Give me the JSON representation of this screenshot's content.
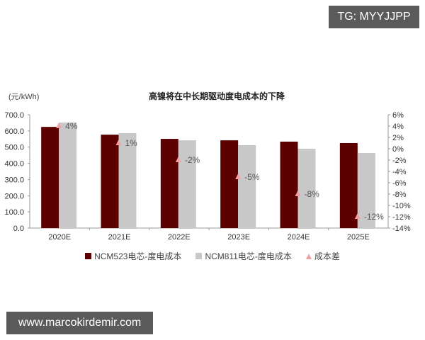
{
  "watermark_top": "TG: MYYJJPP",
  "watermark_bottom": "www.marcokirdemir.com",
  "chart_data": {
    "type": "bar",
    "title": "高镍将在中长期驱动度电成本的下降",
    "ylabel": "(元/kWh)",
    "xlabel": "",
    "categories": [
      "2020E",
      "2021E",
      "2022E",
      "2023E",
      "2024E",
      "2025E"
    ],
    "series": [
      {
        "name": "NCM523电芯-度电成本",
        "type": "bar",
        "axis": "left",
        "color": "#5c0000",
        "values": [
          625,
          577,
          551,
          542,
          534,
          525
        ]
      },
      {
        "name": "NCM811电芯-度电成本",
        "type": "bar",
        "axis": "left",
        "color": "#c8c8c8",
        "values": [
          652,
          586,
          542,
          512,
          490,
          464
        ]
      },
      {
        "name": "成本差",
        "type": "scatter",
        "marker": "triangle",
        "axis": "right",
        "color": "#f0a0a0",
        "values": [
          4,
          1,
          -2,
          -5,
          -8,
          -12
        ],
        "labels": [
          "4%",
          "1%",
          "-2%",
          "-5%",
          "-8%",
          "-12%"
        ]
      }
    ],
    "ylim": [
      0,
      700
    ],
    "y_ticks": [
      "0.0",
      "100.0",
      "200.0",
      "300.0",
      "400.0",
      "500.0",
      "600.0",
      "700.0"
    ],
    "y2lim": [
      -14,
      6
    ],
    "y2_ticks": [
      "-14%",
      "-12%",
      "-10%",
      "-8%",
      "-6%",
      "-4%",
      "-2%",
      "0%",
      "2%",
      "4%",
      "6%"
    ],
    "grid": false,
    "legend_position": "bottom"
  }
}
